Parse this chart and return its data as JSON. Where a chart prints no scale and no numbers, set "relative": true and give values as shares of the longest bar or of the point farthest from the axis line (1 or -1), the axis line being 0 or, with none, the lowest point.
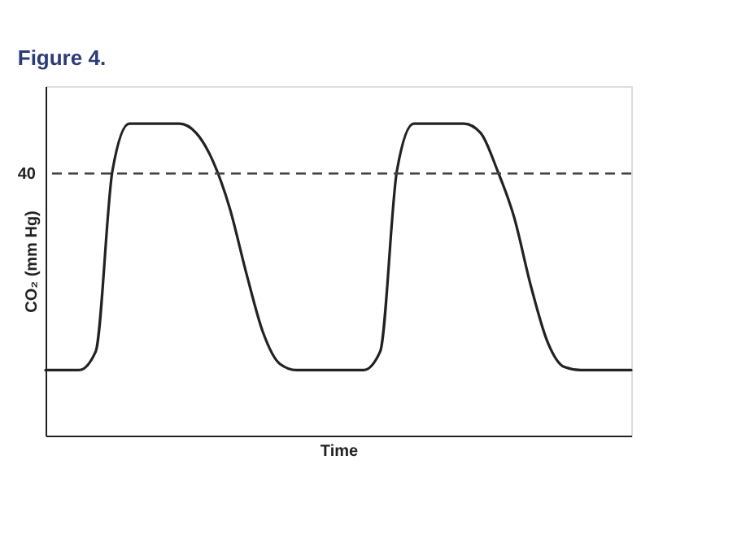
{
  "chart_data": {
    "type": "line",
    "title": "Figure 4.",
    "xlabel": "Time",
    "ylabel": "CO₂ (mm Hg)",
    "relative": true,
    "categories": [
      null,
      null,
      null,
      null,
      null,
      null,
      null,
      null,
      null,
      null,
      null,
      null,
      null,
      null,
      null,
      null,
      null,
      null,
      null,
      null,
      null,
      null,
      null,
      null,
      null,
      null,
      null,
      null,
      null,
      null,
      null,
      null,
      null,
      null,
      null,
      null
    ],
    "series": [
      {
        "color": "#222222",
        "values": [
          0.21,
          0.21,
          0.21,
          0.27,
          0.85,
          1,
          1,
          1,
          1,
          0.97,
          0.88,
          0.73,
          0.52,
          0.33,
          0.23,
          0.21,
          0.21,
          0.21,
          0.21,
          0.21,
          0.27,
          0.85,
          1,
          1,
          1,
          1,
          0.97,
          0.85,
          0.7,
          0.48,
          0.3,
          0.22,
          0.21,
          0.21,
          0.21,
          0.21
        ]
      }
    ],
    "ref_lines": [
      {
        "axis": "y",
        "value": 0.84,
        "color": "#444444",
        "line_style": "dashed"
      }
    ],
    "annotations": [
      "40"
    ],
    "grid": false,
    "marker": "none",
    "line_style": "solid"
  }
}
